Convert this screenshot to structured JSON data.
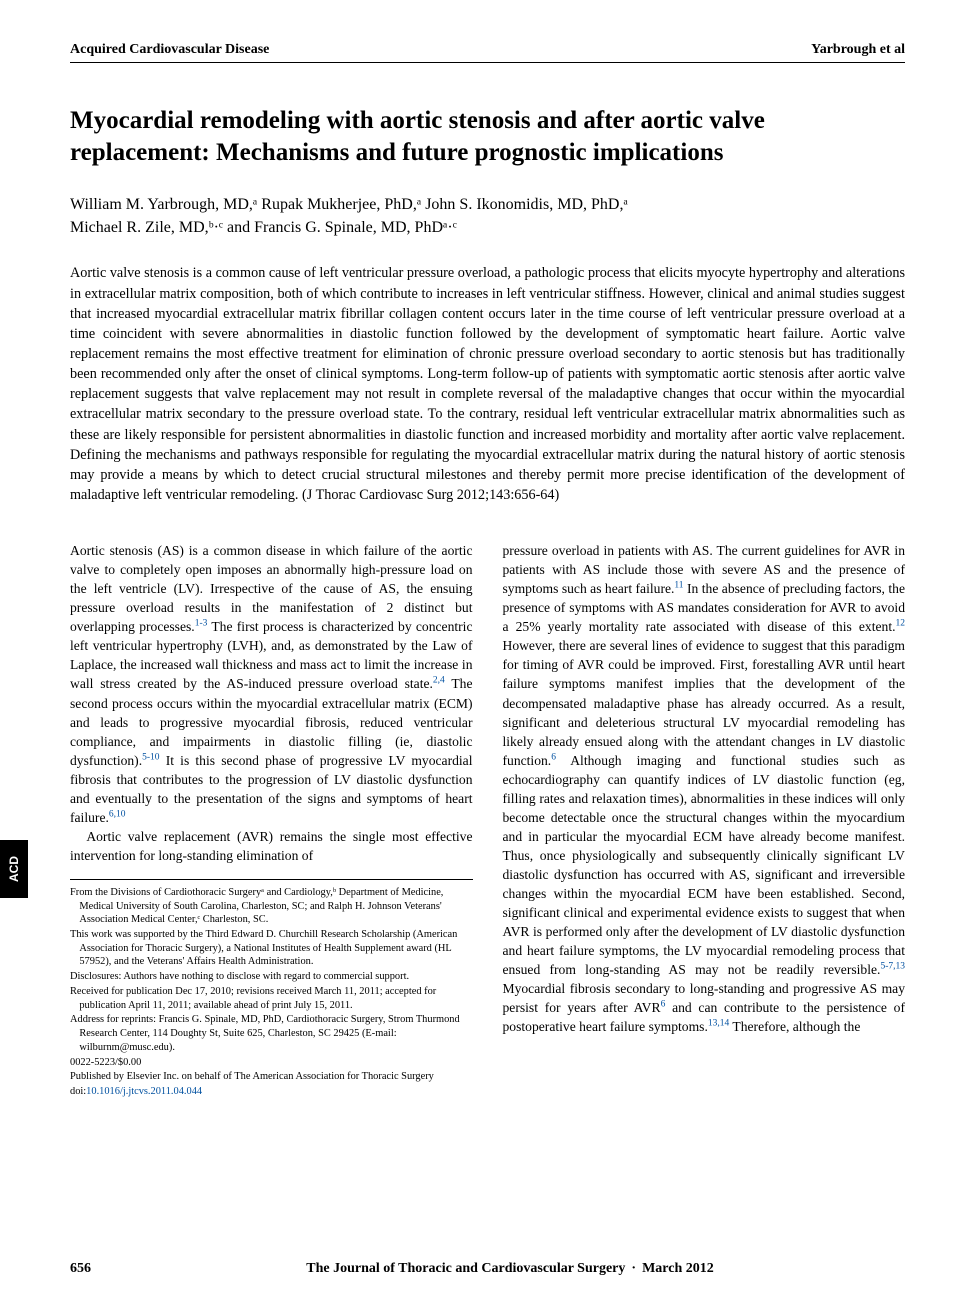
{
  "side_tab": "ACD",
  "running_head": {
    "left": "Acquired Cardiovascular Disease",
    "right": "Yarbrough et al"
  },
  "title": "Myocardial remodeling with aortic stenosis and after aortic valve replacement: Mechanisms and future prognostic implications",
  "authors_line1": "William M. Yarbrough, MD,ᵃ Rupak Mukherjee, PhD,ᵃ John S. Ikonomidis, MD, PhD,ᵃ",
  "authors_line2": "Michael R. Zile, MD,ᵇ·ᶜ and Francis G. Spinale, MD, PhDᵃ·ᶜ",
  "abstract": "Aortic valve stenosis is a common cause of left ventricular pressure overload, a pathologic process that elicits myocyte hypertrophy and alterations in extracellular matrix composition, both of which contribute to increases in left ventricular stiffness. However, clinical and animal studies suggest that increased myocardial extracellular matrix fibrillar collagen content occurs later in the time course of left ventricular pressure overload at a time coincident with severe abnormalities in diastolic function followed by the development of symptomatic heart failure. Aortic valve replacement remains the most effective treatment for elimination of chronic pressure overload secondary to aortic stenosis but has traditionally been recommended only after the onset of clinical symptoms. Long-term follow-up of patients with symptomatic aortic stenosis after aortic valve replacement suggests that valve replacement may not result in complete reversal of the maladaptive changes that occur within the myocardial extracellular matrix secondary to the pressure overload state. To the contrary, residual left ventricular extracellular matrix abnormalities such as these are likely responsible for persistent abnormalities in diastolic function and increased morbidity and mortality after aortic valve replacement. Defining the mechanisms and pathways responsible for regulating the myocardial extracellular matrix during the natural history of aortic stenosis may provide a means by which to detect crucial structural milestones and thereby permit more precise identification of the development of maladaptive left ventricular remodeling. (J Thorac Cardiovasc Surg 2012;143:656-64)",
  "body": {
    "left_p1_a": "Aortic stenosis (AS) is a common disease in which failure of the aortic valve to completely open imposes an abnormally high-pressure load on the left ventricle (LV). Irrespective of the cause of AS, the ensuing pressure overload results in the manifestation of 2 distinct but overlapping processes.",
    "left_p1_ref1": "1-3",
    "left_p1_b": " The first process is characterized by concentric left ventricular hypertrophy (LVH), and, as demonstrated by the Law of Laplace, the increased wall thickness and mass act to limit the increase in wall stress created by the AS-induced pressure overload state.",
    "left_p1_ref2": "2,4",
    "left_p1_c": " The second process occurs within the myocardial extracellular matrix (ECM) and leads to progressive myocardial fibrosis, reduced ventricular compliance, and impairments in diastolic filling (ie, diastolic dysfunction).",
    "left_p1_ref3": "5-10",
    "left_p1_d": " It is this second phase of progressive LV myocardial fibrosis that contributes to the progression of LV diastolic dysfunction and eventually to the presentation of the signs and symptoms of heart failure.",
    "left_p1_ref4": "6,10",
    "left_p2": "Aortic valve replacement (AVR) remains the single most effective intervention for long-standing elimination of",
    "right_p1_a": "pressure overload in patients with AS. The current guidelines for AVR in patients with AS include those with severe AS and the presence of symptoms such as heart failure.",
    "right_ref1": "11",
    "right_p1_b": " In the absence of precluding factors, the presence of symptoms with AS mandates consideration for AVR to avoid a 25% yearly mortality rate associated with disease of this extent.",
    "right_ref2": "12",
    "right_p1_c": " However, there are several lines of evidence to suggest that this paradigm for timing of AVR could be improved. First, forestalling AVR until heart failure symptoms manifest implies that the development of the decompensated maladaptive phase has already occurred. As a result, significant and deleterious structural LV myocardial remodeling has likely already ensued along with the attendant changes in LV diastolic function.",
    "right_ref3": "6",
    "right_p1_d": " Although imaging and functional studies such as echocardiography can quantify indices of LV diastolic function (eg, filling rates and relaxation times), abnormalities in these indices will only become detectable once the structural changes within the myocardium and in particular the myocardial ECM have already become manifest. Thus, once physiologically and subsequently clinically significant LV diastolic dysfunction has occurred with AS, significant and irreversible changes within the myocardial ECM have been established. Second, significant clinical and experimental evidence exists to suggest that when AVR is performed only after the development of LV diastolic dysfunction and heart failure symptoms, the LV myocardial remodeling process that ensued from long-standing AS may not be readily reversible.",
    "right_ref4": "5-7,13",
    "right_p1_e": " Myocardial fibrosis secondary to long-standing and progressive AS may persist for years after AVR",
    "right_ref5": "6",
    "right_p1_f": " and can contribute to the persistence of postoperative heart failure symptoms.",
    "right_ref6": "13,14",
    "right_p1_g": " Therefore, although the"
  },
  "footnotes": {
    "affil": "From the Divisions of Cardiothoracic Surgeryᵃ and Cardiology,ᵇ Department of Medicine, Medical University of South Carolina, Charleston, SC; and Ralph H. Johnson Veterans' Association Medical Center,ᶜ Charleston, SC.",
    "funding": "This work was supported by the Third Edward D. Churchill Research Scholarship (American Association for Thoracic Surgery), a National Institutes of Health Supplement award (HL 57952), and the Veterans' Affairs Health Administration.",
    "disclosures": "Disclosures: Authors have nothing to disclose with regard to commercial support.",
    "received": "Received for publication Dec 17, 2010; revisions received March 11, 2011; accepted for publication April 11, 2011; available ahead of print July 15, 2011.",
    "reprints": "Address for reprints: Francis G. Spinale, MD, PhD, Cardiothoracic Surgery, Strom Thurmond Research Center, 114 Doughty St, Suite 625, Charleston, SC 29425 (E-mail: wilburnm@musc.edu).",
    "issn": "0022-5223/$0.00",
    "publisher": "Published by Elsevier Inc. on behalf of The American Association for Thoracic Surgery",
    "doi_prefix": "doi:",
    "doi": "10.1016/j.jtcvs.2011.04.044"
  },
  "footer": {
    "page": "656",
    "journal": "The Journal of Thoracic and Cardiovascular Surgery",
    "issue": "March 2012"
  }
}
